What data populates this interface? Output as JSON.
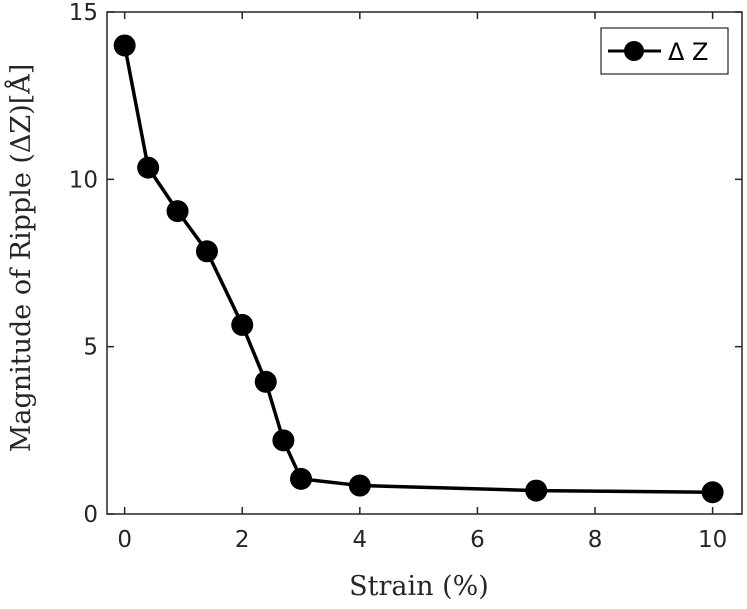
{
  "chart_data": {
    "type": "line",
    "xlabel": "Strain (%)",
    "ylabel": "Magnitude of Ripple (ΔZ)[Å]",
    "xlim": [
      -0.3,
      10.5
    ],
    "ylim": [
      0,
      15
    ],
    "xticks": [
      0,
      2,
      4,
      6,
      8,
      10
    ],
    "yticks": [
      0,
      5,
      10,
      15
    ],
    "grid": false,
    "legend_position": "top-right",
    "series": [
      {
        "name": "Δ Z",
        "color": "#000000",
        "marker": "circle",
        "x": [
          0,
          0.4,
          0.9,
          1.4,
          2.0,
          2.4,
          2.7,
          3.0,
          4.0,
          7.0,
          10.0
        ],
        "y": [
          14.0,
          10.35,
          9.05,
          7.85,
          5.65,
          3.95,
          2.2,
          1.05,
          0.85,
          0.7,
          0.65
        ]
      }
    ]
  }
}
